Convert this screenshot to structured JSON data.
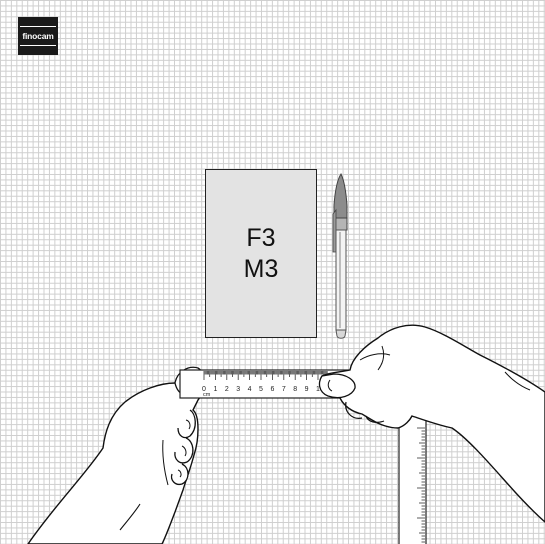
{
  "brand": {
    "logo_text": "finocam"
  },
  "notebook": {
    "line1": "F3",
    "line2": "M3"
  },
  "ruler": {
    "unit": "cm",
    "numbers": [
      "0",
      "1",
      "2",
      "3",
      "4",
      "5",
      "6",
      "7",
      "8",
      "9",
      "1"
    ]
  }
}
